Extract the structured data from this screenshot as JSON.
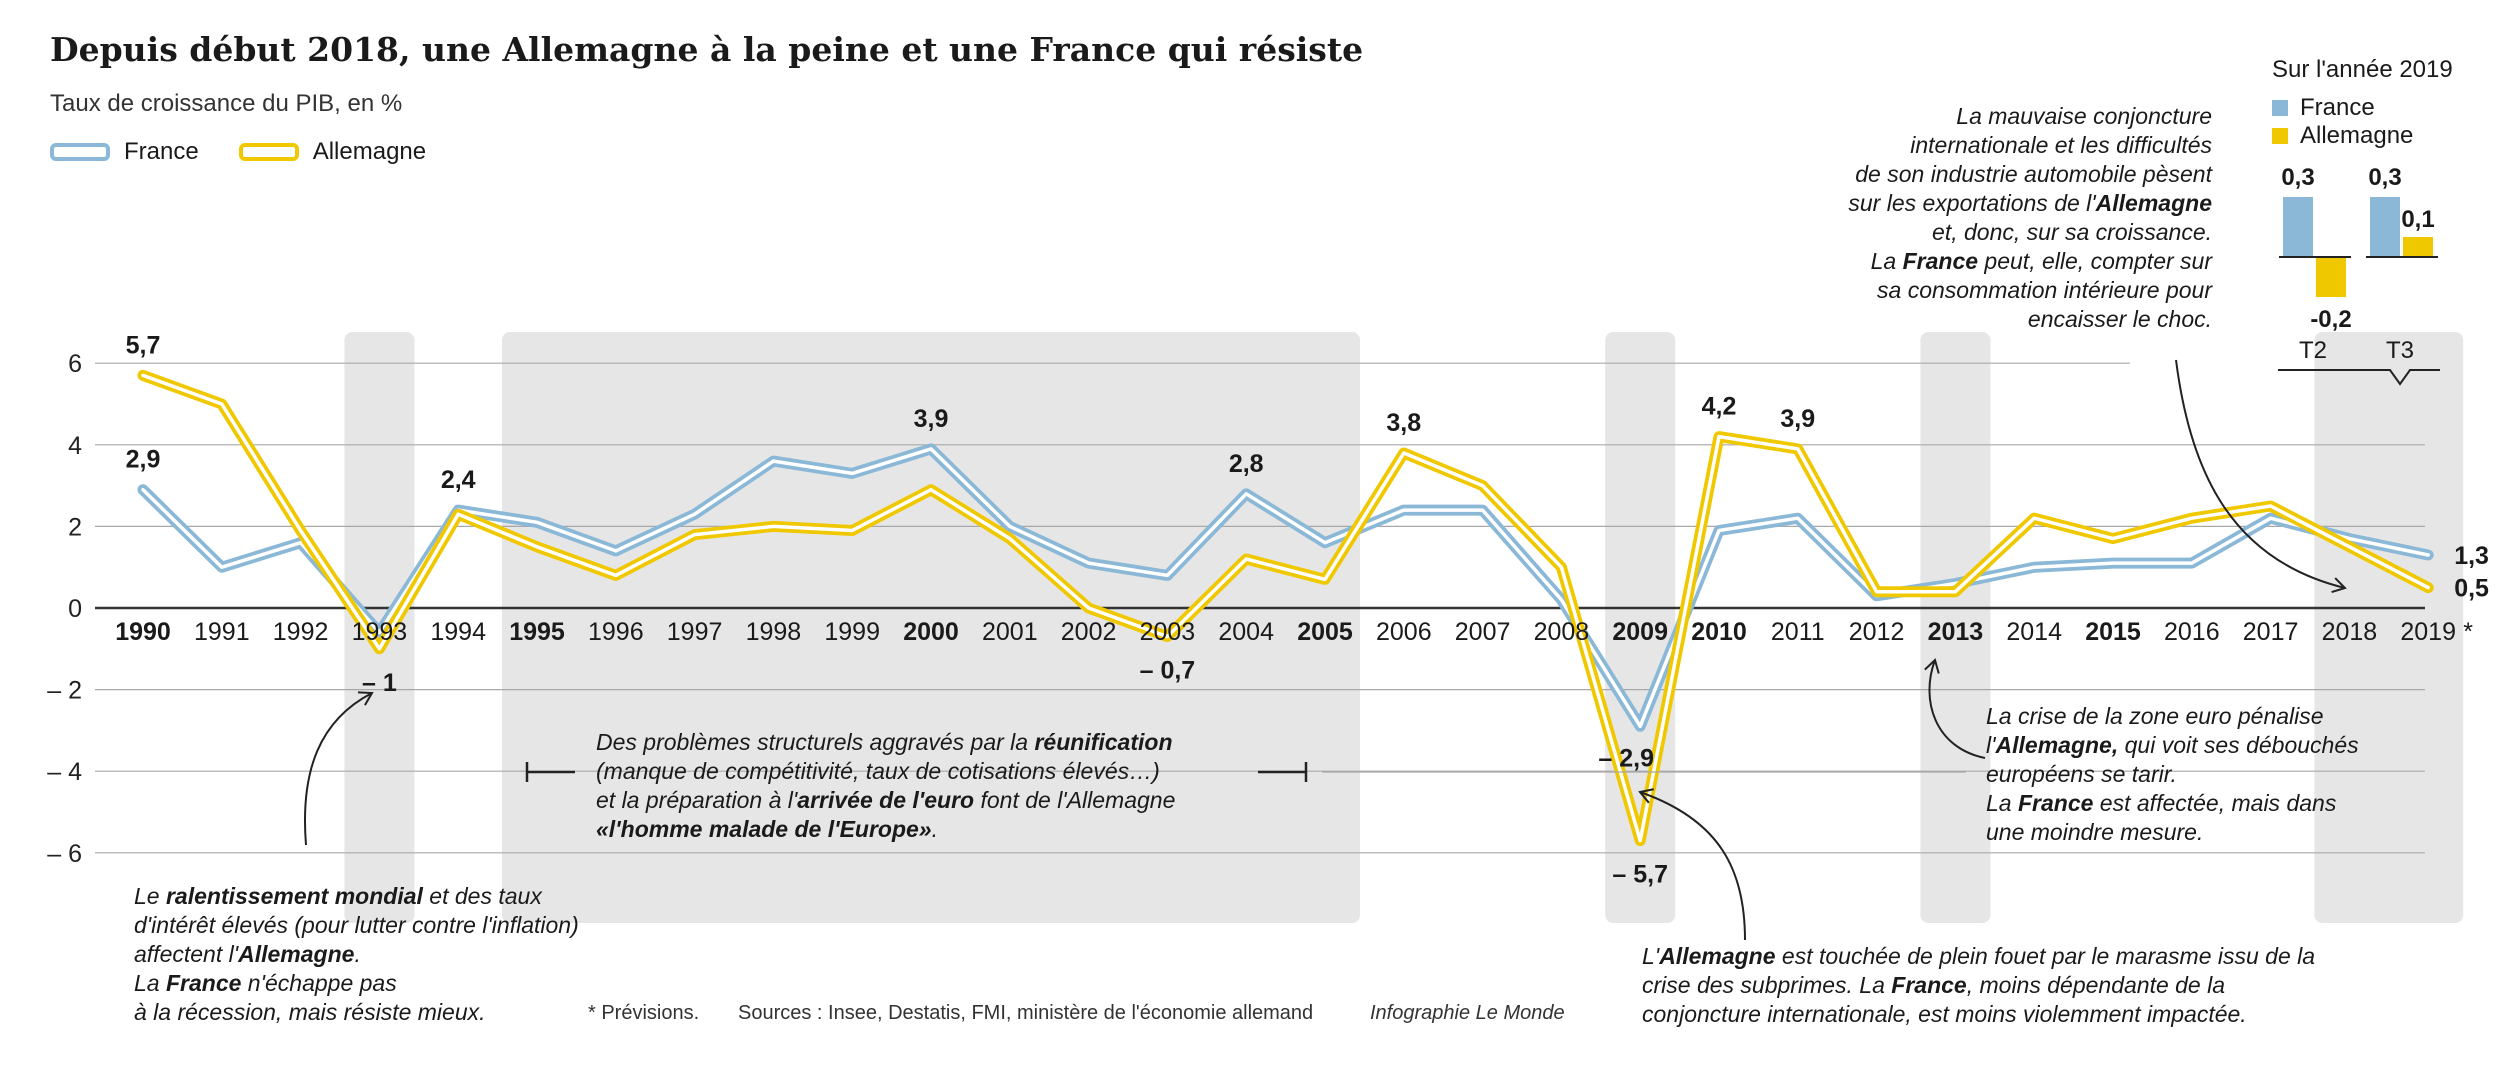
{
  "title": "Depuis début 2018, une Allemagne à la peine et une France qui résiste",
  "subtitle": "Taux de croissance du PIB, en %",
  "legend": {
    "france": "France",
    "allemagne": "Allemagne"
  },
  "colors": {
    "france": "#8ab8d6",
    "allemagne": "#f0c800",
    "shade": "#e6e6e6",
    "axis": "#333333"
  },
  "chart_data": {
    "type": "line",
    "x": [
      "1990",
      "1991",
      "1992",
      "1993",
      "1994",
      "1995",
      "1996",
      "1997",
      "1998",
      "1999",
      "2000",
      "2001",
      "2002",
      "2003",
      "2004",
      "2005",
      "2006",
      "2007",
      "2008",
      "2009",
      "2010",
      "2011",
      "2012",
      "2013",
      "2014",
      "2015",
      "2016",
      "2017",
      "2018",
      "2019"
    ],
    "x_tick_labels": [
      "1990",
      "1991",
      "1992",
      "1993",
      "1994",
      "1995",
      "1996",
      "1997",
      "1998",
      "1999",
      "2000",
      "2001",
      "2002",
      "2003",
      "2004",
      "2005",
      "2006",
      "2007",
      "2008",
      "2009",
      "2010",
      "2011",
      "2012",
      "2013",
      "2014",
      "2015",
      "2016",
      "2017",
      "2018",
      "2019"
    ],
    "bold_years": [
      "1990",
      "1995",
      "2000",
      "2005",
      "2009",
      "2010",
      "2013",
      "2015"
    ],
    "forecast_mark": "*",
    "series": [
      {
        "name": "France",
        "values": [
          2.9,
          1.0,
          1.6,
          -0.6,
          2.4,
          2.1,
          1.4,
          2.3,
          3.6,
          3.3,
          3.9,
          2.0,
          1.1,
          0.8,
          2.8,
          1.6,
          2.4,
          2.4,
          0.2,
          -2.9,
          1.9,
          2.2,
          0.3,
          0.6,
          1.0,
          1.1,
          1.1,
          2.2,
          1.7,
          1.3
        ]
      },
      {
        "name": "Allemagne",
        "values": [
          5.7,
          5.0,
          1.9,
          -1.0,
          2.3,
          1.5,
          0.8,
          1.8,
          2.0,
          1.9,
          2.9,
          1.7,
          0.0,
          -0.7,
          1.2,
          0.7,
          3.8,
          3.0,
          1.0,
          -5.7,
          4.2,
          3.9,
          0.4,
          0.4,
          2.2,
          1.7,
          2.2,
          2.5,
          1.5,
          0.5
        ]
      }
    ],
    "yticks": [
      6,
      4,
      2,
      0,
      -2,
      -4,
      -6
    ],
    "ytick_labels": [
      "6",
      "4",
      "2",
      "0",
      "– 2",
      "– 4",
      "– 6"
    ],
    "ylim": [
      -7.6,
      7.3
    ],
    "shaded_periods": [
      [
        "1993",
        "1993"
      ],
      [
        "1995",
        "2005"
      ],
      [
        "2009",
        "2009"
      ],
      [
        "2013",
        "2013"
      ],
      [
        "2018",
        "2019"
      ]
    ],
    "data_labels": [
      {
        "series": "Allemagne",
        "year": "1990",
        "text": "5,7",
        "pos": "above"
      },
      {
        "series": "France",
        "year": "1990",
        "text": "2,9",
        "pos": "above"
      },
      {
        "series": "Allemagne",
        "year": "1993",
        "text": "– 1",
        "pos": "below"
      },
      {
        "series": "France",
        "year": "1994",
        "text": "2,4",
        "pos": "above"
      },
      {
        "series": "France",
        "year": "2000",
        "text": "3,9",
        "pos": "above"
      },
      {
        "series": "Allemagne",
        "year": "2003",
        "text": "– 0,7",
        "pos": "below"
      },
      {
        "series": "France",
        "year": "2004",
        "text": "2,8",
        "pos": "above"
      },
      {
        "series": "Allemagne",
        "year": "2006",
        "text": "3,8",
        "pos": "above"
      },
      {
        "series": "France",
        "year": "2009",
        "text": "– 2,9",
        "pos": "belowright"
      },
      {
        "series": "Allemagne",
        "year": "2009",
        "text": "– 5,7",
        "pos": "below"
      },
      {
        "series": "Allemagne",
        "year": "2010",
        "text": "4,2",
        "pos": "above"
      },
      {
        "series": "Allemagne",
        "year": "2011",
        "text": "3,9",
        "pos": "above"
      },
      {
        "series": "France",
        "year": "2019",
        "text": "1,3",
        "pos": "right"
      },
      {
        "series": "Allemagne",
        "year": "2019",
        "text": "0,5",
        "pos": "right"
      }
    ]
  },
  "inset": {
    "title": "Sur l'année 2019",
    "legend_france": "France",
    "legend_allemagne": "Allemagne",
    "quarters": [
      "T2",
      "T3"
    ],
    "france": [
      0.3,
      0.3
    ],
    "allemagne": [
      -0.2,
      0.1
    ],
    "labels_france": [
      "0,3",
      "0,3"
    ],
    "labels_allemagne": [
      "-0,2",
      "0,1"
    ]
  },
  "annotations": {
    "a1993": "Le <b>ralentissement mondial</b> et des taux d'intérêt élevés (pour lutter contre l'inflation) affectent l'<b>Allemagne</b>.<br>La <b>France</b> n'échappe pas<br>à la récession, mais résiste mieux.",
    "a1995": "Des problèmes structurels aggravés par la <b>réunification</b><br>(manque de compétitivité, taux de cotisations élevés…)<br>et la préparation à l'<b>arrivée de l'euro</b> font de l'Allemagne<br><b>«l'homme malade de l'Europe»</b>.",
    "a2009": "L'<b>Allemagne</b> est touchée de plein fouet par le marasme issu de la<br>crise des subprimes. La <b>France</b>, moins dépendante de la<br>conjoncture internationale, est moins violemment impactée.",
    "a2013": "La crise de la zone euro pénalise<br>l'<b>Allemagne,</b> qui voit ses débouchés<br>européens se tarir.<br>La <b>France</b> est affectée, mais dans<br>une moindre mesure.",
    "a2019": "La mauvaise conjoncture<br>internationale et les difficultés<br>de son industrie automobile pèsent<br>sur les exportations de l'<b>Allemagne</b><br>et, donc, sur sa croissance.<br>La <b>France</b> peut, elle, compter sur<br>sa consommation intérieure pour<br>encaisser le choc."
  },
  "footer": {
    "prevision": "* Prévisions.",
    "sources": "Sources : Insee, Destatis, FMI, ministère de l'économie allemand",
    "credit": "Infographie Le Monde"
  }
}
